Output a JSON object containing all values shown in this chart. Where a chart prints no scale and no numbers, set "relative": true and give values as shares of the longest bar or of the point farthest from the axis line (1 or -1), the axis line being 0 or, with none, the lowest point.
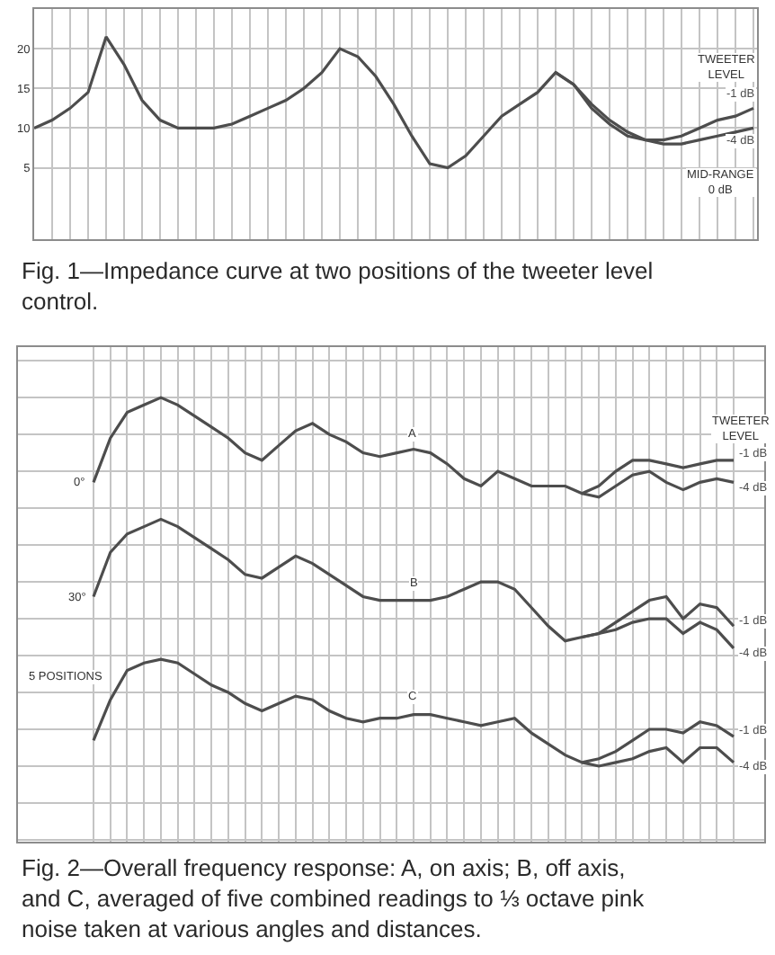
{
  "chart_data": [
    {
      "type": "line",
      "title": "Fig. 1—Impedance curve at two positions of the tweeter level control.",
      "legend_title": "TWEETER\nLEVEL",
      "annotations": [
        "MID-RANGE\n0 dB"
      ],
      "categories": [
        null,
        null,
        null,
        null,
        null,
        null,
        null,
        null,
        null,
        null,
        null,
        null,
        null,
        null,
        null,
        null,
        null,
        null,
        null,
        null,
        null,
        null,
        null,
        null,
        null,
        null,
        null,
        null,
        null,
        null,
        null,
        null,
        null,
        null,
        null,
        null,
        null,
        null,
        null,
        null,
        null
      ],
      "ylim": [
        -4,
        25
      ],
      "yticks": [
        5,
        10,
        15,
        20
      ],
      "grid": true,
      "series": [
        {
          "name": "-1 dB",
          "color": "#4d4d4d",
          "values": [
            10,
            11,
            12.5,
            14.5,
            21.5,
            18,
            13.5,
            11,
            10,
            10,
            10,
            10.5,
            11.5,
            12.5,
            13.5,
            15,
            17,
            20,
            19,
            16.5,
            13,
            9,
            5.5,
            5,
            6.5,
            9,
            11.5,
            13,
            14.5,
            17,
            15.5,
            13,
            11,
            9.5,
            8.5,
            8.5,
            9,
            10,
            11,
            11.5,
            12.5
          ]
        },
        {
          "name": "-4 dB",
          "color": "#4d4d4d",
          "values": [
            null,
            null,
            null,
            null,
            null,
            null,
            null,
            null,
            null,
            null,
            null,
            null,
            null,
            null,
            null,
            null,
            null,
            null,
            null,
            null,
            null,
            null,
            null,
            null,
            null,
            null,
            null,
            null,
            null,
            17,
            15.5,
            12.5,
            10.5,
            9,
            8.5,
            8,
            8,
            8.5,
            9,
            9.5,
            10
          ]
        }
      ]
    },
    {
      "type": "line",
      "title": "Fig. 2—Overall frequency response: A, on axis; B, off axis, and C, averaged of five combined readings to ⅓ octave pink noise taken at various angles and distances.",
      "legend_title": "TWEETER\nLEVEL",
      "annotations": [
        "0°",
        "A",
        "30°",
        "B",
        "5 POSITIONS",
        "C"
      ],
      "categories": [
        null,
        null,
        null,
        null,
        null,
        null,
        null,
        null,
        null,
        null,
        null,
        null,
        null,
        null,
        null,
        null,
        null,
        null,
        null,
        null,
        null,
        null,
        null,
        null,
        null,
        null,
        null,
        null,
        null,
        null,
        null,
        null,
        null,
        null,
        null,
        null,
        null,
        null,
        null
      ],
      "relative": true,
      "grid": true,
      "series": [
        {
          "name": "-1 dB",
          "color": "#4d4d4d",
          "values": [
            0.77,
            0.89,
            0.96,
            0.98,
            1,
            0.98,
            0.95,
            0.92,
            0.89,
            0.85,
            0.83,
            0.87,
            0.91,
            0.93,
            0.9,
            0.88,
            0.85,
            0.84,
            0.85,
            0.86,
            0.85,
            0.82,
            0.78,
            0.76,
            0.8,
            0.78,
            0.76,
            0.76,
            0.76,
            0.74,
            0.76,
            0.8,
            0.83,
            0.83,
            0.82,
            0.81,
            0.82,
            0.83,
            0.83
          ]
        },
        {
          "name": "-4 dB",
          "color": "#4d4d4d",
          "values": [
            null,
            null,
            null,
            null,
            null,
            null,
            null,
            null,
            null,
            null,
            null,
            null,
            null,
            null,
            null,
            null,
            null,
            null,
            null,
            null,
            null,
            null,
            null,
            null,
            null,
            null,
            null,
            null,
            null,
            0.74,
            0.73,
            0.76,
            0.79,
            0.8,
            0.77,
            0.75,
            0.77,
            0.78,
            0.77
          ]
        },
        {
          "name": "-1 dB",
          "color": "#4d4d4d",
          "values": [
            0.46,
            0.58,
            0.63,
            0.65,
            0.67,
            0.65,
            0.62,
            0.59,
            0.56,
            0.52,
            0.51,
            0.54,
            0.57,
            0.55,
            0.52,
            0.49,
            0.46,
            0.45,
            0.45,
            0.45,
            0.45,
            0.46,
            0.48,
            0.5,
            0.5,
            0.48,
            0.43,
            0.38,
            0.34,
            0.35,
            0.36,
            0.39,
            0.42,
            0.45,
            0.46,
            0.4,
            0.44,
            0.43,
            0.38
          ]
        },
        {
          "name": "-4 dB",
          "color": "#4d4d4d",
          "values": [
            null,
            null,
            null,
            null,
            null,
            null,
            null,
            null,
            null,
            null,
            null,
            null,
            null,
            null,
            null,
            null,
            null,
            null,
            null,
            null,
            null,
            null,
            null,
            null,
            null,
            null,
            null,
            null,
            null,
            0.35,
            0.36,
            0.37,
            0.39,
            0.4,
            0.4,
            0.36,
            0.39,
            0.37,
            0.32
          ]
        },
        {
          "name": "-1 dB",
          "color": "#4d4d4d",
          "values": [
            0.07,
            0.18,
            0.26,
            0.28,
            0.29,
            0.28,
            0.25,
            0.22,
            0.2,
            0.17,
            0.15,
            0.17,
            0.19,
            0.18,
            0.15,
            0.13,
            0.12,
            0.13,
            0.13,
            0.14,
            0.14,
            0.13,
            0.12,
            0.11,
            0.12,
            0.13,
            0.09,
            0.06,
            0.03,
            0.01,
            0.02,
            0.04,
            0.07,
            0.1,
            0.1,
            0.09,
            0.12,
            0.11,
            0.08
          ]
        },
        {
          "name": "-4 dB",
          "color": "#4d4d4d",
          "values": [
            null,
            null,
            null,
            null,
            null,
            null,
            null,
            null,
            null,
            null,
            null,
            null,
            null,
            null,
            null,
            null,
            null,
            null,
            null,
            null,
            null,
            null,
            null,
            null,
            null,
            null,
            null,
            null,
            null,
            0.01,
            0,
            0.01,
            0.02,
            0.04,
            0.05,
            0.01,
            0.05,
            0.05,
            0.01
          ]
        }
      ]
    }
  ]
}
